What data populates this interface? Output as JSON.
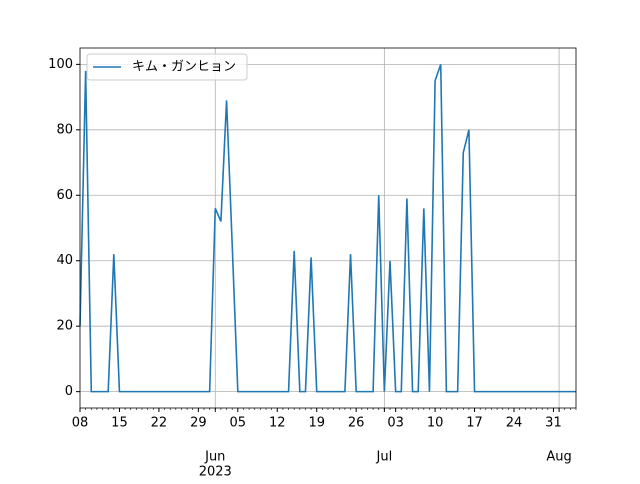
{
  "chart_data": {
    "type": "line",
    "x": [
      "2023-05-08",
      "2023-05-09",
      "2023-05-10",
      "2023-05-11",
      "2023-05-12",
      "2023-05-13",
      "2023-05-14",
      "2023-05-15",
      "2023-05-16",
      "2023-05-17",
      "2023-05-18",
      "2023-05-19",
      "2023-05-20",
      "2023-05-21",
      "2023-05-22",
      "2023-05-23",
      "2023-05-24",
      "2023-05-25",
      "2023-05-26",
      "2023-05-27",
      "2023-05-28",
      "2023-05-29",
      "2023-05-30",
      "2023-05-31",
      "2023-06-01",
      "2023-06-02",
      "2023-06-03",
      "2023-06-04",
      "2023-06-05",
      "2023-06-06",
      "2023-06-07",
      "2023-06-08",
      "2023-06-09",
      "2023-06-10",
      "2023-06-11",
      "2023-06-12",
      "2023-06-13",
      "2023-06-14",
      "2023-06-15",
      "2023-06-16",
      "2023-06-17",
      "2023-06-18",
      "2023-06-19",
      "2023-06-20",
      "2023-06-21",
      "2023-06-22",
      "2023-06-23",
      "2023-06-24",
      "2023-06-25",
      "2023-06-26",
      "2023-06-27",
      "2023-06-28",
      "2023-06-29",
      "2023-06-30",
      "2023-07-01",
      "2023-07-02",
      "2023-07-03",
      "2023-07-04",
      "2023-07-05",
      "2023-07-06",
      "2023-07-07",
      "2023-07-08",
      "2023-07-09",
      "2023-07-10",
      "2023-07-11",
      "2023-07-12",
      "2023-07-13",
      "2023-07-14",
      "2023-07-15",
      "2023-07-16",
      "2023-07-17",
      "2023-07-18",
      "2023-07-19",
      "2023-07-20",
      "2023-07-21",
      "2023-07-22",
      "2023-07-23",
      "2023-07-24",
      "2023-07-25",
      "2023-07-26",
      "2023-07-27",
      "2023-07-28",
      "2023-07-29",
      "2023-07-30",
      "2023-07-31",
      "2023-08-01",
      "2023-08-02",
      "2023-08-03",
      "2023-08-04"
    ],
    "series": [
      {
        "name": "キム・ガンヒョン",
        "color": "#1f77b4",
        "values": [
          20,
          98,
          0,
          0,
          0,
          0,
          42,
          0,
          0,
          0,
          0,
          0,
          0,
          0,
          0,
          0,
          0,
          0,
          0,
          0,
          0,
          0,
          0,
          0,
          56,
          52,
          89,
          45,
          0,
          0,
          0,
          0,
          0,
          0,
          0,
          0,
          0,
          0,
          43,
          0,
          0,
          41,
          0,
          0,
          0,
          0,
          0,
          0,
          42,
          0,
          0,
          0,
          0,
          60,
          0,
          40,
          0,
          0,
          59,
          0,
          0,
          56,
          0,
          95,
          100,
          0,
          0,
          0,
          73,
          80,
          0,
          0,
          0,
          0,
          0,
          0,
          0,
          0,
          0,
          0,
          0,
          0,
          0,
          0,
          0,
          0,
          0,
          0,
          0
        ]
      }
    ],
    "xlim": [
      "2023-05-08",
      "2023-08-04"
    ],
    "xticks": [
      {
        "value": "2023-05-08",
        "label": "08"
      },
      {
        "value": "2023-05-15",
        "label": "15"
      },
      {
        "value": "2023-05-22",
        "label": "22"
      },
      {
        "value": "2023-05-29",
        "label": "29"
      },
      {
        "value": "2023-06-05",
        "label": "05"
      },
      {
        "value": "2023-06-12",
        "label": "12"
      },
      {
        "value": "2023-06-19",
        "label": "19"
      },
      {
        "value": "2023-06-26",
        "label": "26"
      },
      {
        "value": "2023-07-03",
        "label": "03"
      },
      {
        "value": "2023-07-10",
        "label": "10"
      },
      {
        "value": "2023-07-17",
        "label": "17"
      },
      {
        "value": "2023-07-24",
        "label": "24"
      },
      {
        "value": "2023-07-31",
        "label": "31"
      }
    ],
    "xticks_major": [
      {
        "value": "2023-06-01",
        "label": "Jun"
      },
      {
        "value": "2023-07-01",
        "label": "Jul"
      },
      {
        "value": "2023-08-01",
        "label": "Aug"
      }
    ],
    "xtick_year": {
      "value": "2023-06-01",
      "label": "2023"
    },
    "ylim": [
      -5,
      105
    ],
    "yticks": [
      0,
      20,
      40,
      60,
      80,
      100
    ],
    "grid": true,
    "legend": "upper left"
  }
}
